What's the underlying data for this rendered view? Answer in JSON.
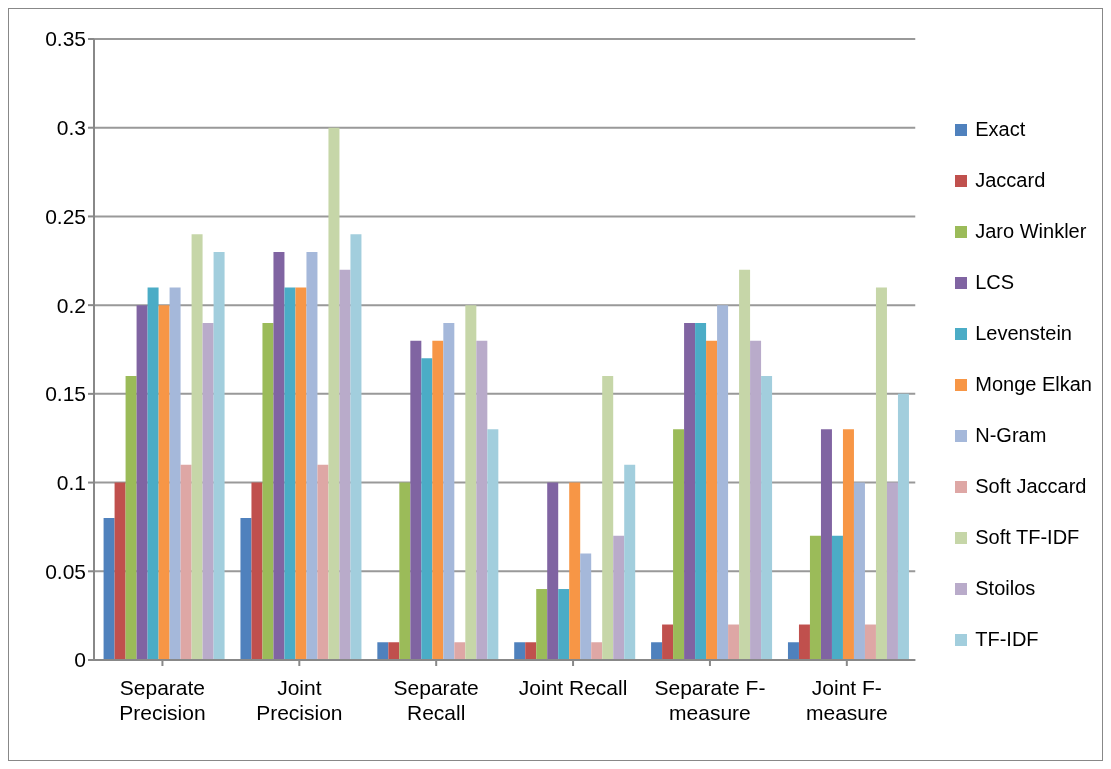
{
  "chart_data": {
    "type": "bar",
    "categories": [
      "Separate Precision",
      "Joint Precision",
      "Separate Recall",
      "Joint Recall",
      "Separate F-measure",
      "Joint F-measure"
    ],
    "series": [
      {
        "name": "Exact",
        "color": "#4f81bd",
        "values": [
          0.08,
          0.08,
          0.01,
          0.01,
          0.01,
          0.01
        ]
      },
      {
        "name": "Jaccard",
        "color": "#c0504d",
        "values": [
          0.1,
          0.1,
          0.01,
          0.01,
          0.02,
          0.02
        ]
      },
      {
        "name": "Jaro Winkler",
        "color": "#9bbb59",
        "values": [
          0.16,
          0.19,
          0.1,
          0.04,
          0.13,
          0.07
        ]
      },
      {
        "name": "LCS",
        "color": "#8064a2",
        "values": [
          0.2,
          0.23,
          0.18,
          0.1,
          0.19,
          0.13
        ]
      },
      {
        "name": "Levenstein",
        "color": "#4bacc6",
        "values": [
          0.21,
          0.21,
          0.17,
          0.04,
          0.19,
          0.07
        ]
      },
      {
        "name": "Monge Elkan",
        "color": "#f79646",
        "values": [
          0.2,
          0.21,
          0.18,
          0.1,
          0.18,
          0.13
        ]
      },
      {
        "name": "N-Gram",
        "color": "#a5b8da",
        "values": [
          0.21,
          0.23,
          0.19,
          0.06,
          0.2,
          0.1
        ]
      },
      {
        "name": "Soft Jaccard",
        "color": "#dea7a5",
        "values": [
          0.11,
          0.11,
          0.01,
          0.01,
          0.02,
          0.02
        ]
      },
      {
        "name": "Soft TF-IDF",
        "color": "#c6d6a8",
        "values": [
          0.24,
          0.3,
          0.2,
          0.16,
          0.22,
          0.21
        ]
      },
      {
        "name": "Stoilos",
        "color": "#b9abca",
        "values": [
          0.19,
          0.22,
          0.18,
          0.07,
          0.18,
          0.1
        ]
      },
      {
        "name": "TF-IDF",
        "color": "#a2cedd",
        "values": [
          0.23,
          0.24,
          0.13,
          0.11,
          0.16,
          0.15
        ]
      }
    ],
    "ylim": [
      0,
      0.35
    ],
    "yticks": [
      0,
      0.05,
      0.1,
      0.15,
      0.2,
      0.25,
      0.3,
      0.35
    ],
    "grid": "y",
    "legend": "right"
  }
}
